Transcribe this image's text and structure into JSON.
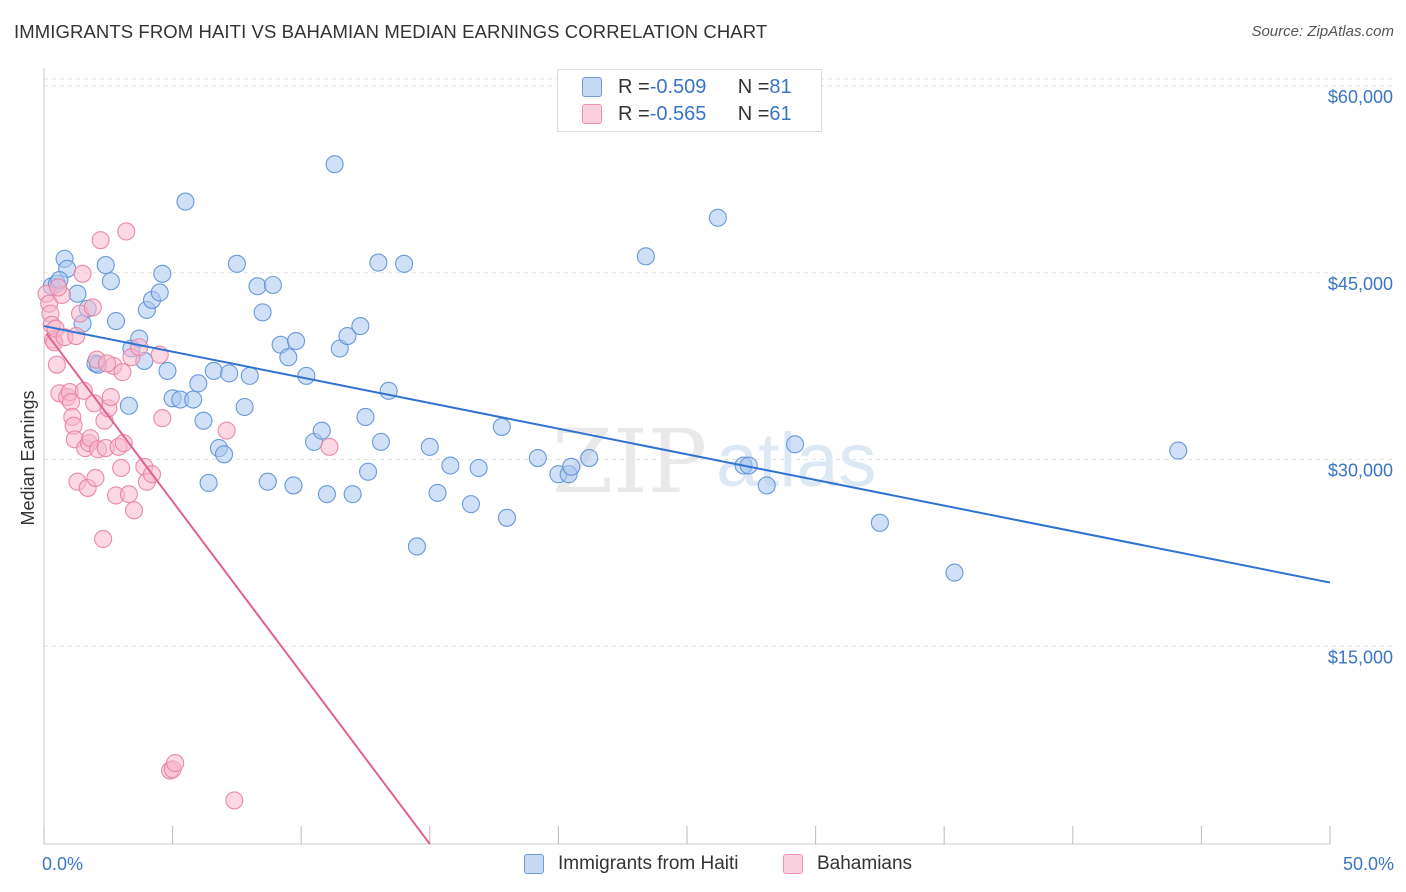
{
  "header": {
    "title": "IMMIGRANTS FROM HAITI VS BAHAMIAN MEDIAN EARNINGS CORRELATION CHART",
    "source": "Source: ZipAtlas.com"
  },
  "legend": {
    "rows": [
      {
        "r_label": "R = ",
        "r_value": "-0.509",
        "n_label": "N = ",
        "n_value": "81"
      },
      {
        "r_label": "R = ",
        "r_value": "-0.565",
        "n_label": "N = ",
        "n_value": "61"
      }
    ],
    "bottom": [
      "Immigrants from Haiti",
      "Bahamians"
    ]
  },
  "watermark": {
    "zip": "ZIP",
    "atlas": "atlas"
  },
  "colors": {
    "haiti_fill": "#aac8f0",
    "haiti_stroke": "#5b8fd6",
    "haiti_line": "#2f72d0",
    "bahamas_fill": "#f7b8cc",
    "bahamas_stroke": "#e87fa2",
    "bahamas_line": "#e0628f",
    "tick_text": "#3a75c4",
    "grid": "#e3e3e3"
  },
  "chart_data": {
    "type": "scatter",
    "title": "IMMIGRANTS FROM HAITI VS BAHAMIAN MEDIAN EARNINGS CORRELATION CHART",
    "xlabel": "",
    "ylabel": "Median Earnings",
    "xlim": [
      0,
      50
    ],
    "ylim": [
      0,
      62000
    ],
    "x_tick_labels": [
      "0.0%",
      "50.0%"
    ],
    "y_ticks": [
      15000,
      30000,
      45000,
      60000
    ],
    "y_tick_labels": [
      "$15,000",
      "$30,000",
      "$45,000",
      "$60,000"
    ],
    "grid": true,
    "legend_position": "top-center",
    "series": [
      {
        "name": "Immigrants from Haiti",
        "r": -0.509,
        "n": 81,
        "trend": {
          "x": [
            0,
            50
          ],
          "y": [
            41600,
            21000
          ]
        },
        "points": [
          [
            0.3,
            44800
          ],
          [
            0.5,
            45000
          ],
          [
            0.8,
            47000
          ],
          [
            0.9,
            46200
          ],
          [
            1.3,
            44200
          ],
          [
            1.5,
            41800
          ],
          [
            1.7,
            43000
          ],
          [
            2.0,
            38600
          ],
          [
            2.4,
            46500
          ],
          [
            2.6,
            45200
          ],
          [
            2.8,
            42000
          ],
          [
            3.3,
            35200
          ],
          [
            3.4,
            39800
          ],
          [
            3.7,
            40600
          ],
          [
            3.9,
            38800
          ],
          [
            4.0,
            42900
          ],
          [
            4.2,
            43700
          ],
          [
            4.5,
            44300
          ],
          [
            4.6,
            45800
          ],
          [
            4.8,
            38000
          ],
          [
            5.0,
            35800
          ],
          [
            5.3,
            35700
          ],
          [
            5.5,
            51600
          ],
          [
            5.8,
            35700
          ],
          [
            6.0,
            37000
          ],
          [
            6.2,
            34000
          ],
          [
            6.4,
            29000
          ],
          [
            6.6,
            38000
          ],
          [
            6.8,
            31800
          ],
          [
            7.0,
            31300
          ],
          [
            7.2,
            37800
          ],
          [
            7.5,
            46600
          ],
          [
            7.8,
            35100
          ],
          [
            8.0,
            37600
          ],
          [
            8.3,
            44800
          ],
          [
            8.5,
            42700
          ],
          [
            8.7,
            29100
          ],
          [
            8.9,
            44900
          ],
          [
            9.2,
            40100
          ],
          [
            9.5,
            39100
          ],
          [
            9.7,
            28800
          ],
          [
            9.8,
            40400
          ],
          [
            10.2,
            37600
          ],
          [
            10.5,
            32300
          ],
          [
            10.8,
            33200
          ],
          [
            11.0,
            28100
          ],
          [
            11.3,
            54600
          ],
          [
            11.5,
            39800
          ],
          [
            11.8,
            40800
          ],
          [
            12.0,
            28100
          ],
          [
            12.3,
            41600
          ],
          [
            12.5,
            34300
          ],
          [
            12.6,
            29900
          ],
          [
            13.0,
            46700
          ],
          [
            13.1,
            32300
          ],
          [
            13.4,
            36400
          ],
          [
            14.0,
            46600
          ],
          [
            14.5,
            23900
          ],
          [
            15.0,
            31900
          ],
          [
            15.3,
            28200
          ],
          [
            15.8,
            30400
          ],
          [
            16.6,
            27300
          ],
          [
            16.9,
            30200
          ],
          [
            17.8,
            33500
          ],
          [
            18.0,
            26200
          ],
          [
            19.2,
            31000
          ],
          [
            20.0,
            29700
          ],
          [
            20.4,
            29700
          ],
          [
            20.5,
            30300
          ],
          [
            21.2,
            31000
          ],
          [
            23.4,
            47200
          ],
          [
            26.2,
            50300
          ],
          [
            27.2,
            30400
          ],
          [
            27.4,
            30400
          ],
          [
            28.1,
            28800
          ],
          [
            29.2,
            32100
          ],
          [
            32.5,
            25800
          ],
          [
            35.4,
            21800
          ],
          [
            44.1,
            31600
          ],
          [
            0.6,
            45300
          ],
          [
            2.1,
            38500
          ]
        ]
      },
      {
        "name": "Bahamians",
        "r": -0.565,
        "n": 61,
        "trend": {
          "x": [
            0.1,
            15.0
          ],
          "y": [
            41000,
            0
          ]
        },
        "points": [
          [
            0.1,
            44200
          ],
          [
            0.2,
            43400
          ],
          [
            0.25,
            42600
          ],
          [
            0.3,
            41700
          ],
          [
            0.35,
            40500
          ],
          [
            0.4,
            40300
          ],
          [
            0.45,
            41400
          ],
          [
            0.5,
            38500
          ],
          [
            0.6,
            36200
          ],
          [
            0.7,
            44100
          ],
          [
            0.8,
            40700
          ],
          [
            0.9,
            35900
          ],
          [
            1.0,
            36300
          ],
          [
            1.05,
            35500
          ],
          [
            1.1,
            34300
          ],
          [
            1.15,
            33600
          ],
          [
            1.2,
            32500
          ],
          [
            1.3,
            29100
          ],
          [
            1.4,
            42600
          ],
          [
            1.5,
            45800
          ],
          [
            1.55,
            36400
          ],
          [
            1.6,
            31800
          ],
          [
            1.7,
            28600
          ],
          [
            1.75,
            32200
          ],
          [
            1.8,
            32600
          ],
          [
            1.9,
            43100
          ],
          [
            2.0,
            29400
          ],
          [
            2.05,
            38900
          ],
          [
            2.1,
            31700
          ],
          [
            2.2,
            48500
          ],
          [
            2.3,
            24500
          ],
          [
            2.35,
            34000
          ],
          [
            2.4,
            31800
          ],
          [
            2.5,
            35000
          ],
          [
            2.6,
            35900
          ],
          [
            2.7,
            38400
          ],
          [
            2.8,
            28000
          ],
          [
            2.9,
            31900
          ],
          [
            3.0,
            30200
          ],
          [
            3.1,
            32200
          ],
          [
            3.2,
            49200
          ],
          [
            3.3,
            28100
          ],
          [
            3.4,
            39100
          ],
          [
            3.5,
            26800
          ],
          [
            3.7,
            39900
          ],
          [
            3.9,
            30300
          ],
          [
            4.0,
            29100
          ],
          [
            4.2,
            29700
          ],
          [
            4.5,
            39300
          ],
          [
            4.6,
            34200
          ],
          [
            4.9,
            5900
          ],
          [
            5.0,
            6000
          ],
          [
            5.1,
            6500
          ],
          [
            7.1,
            33200
          ],
          [
            7.4,
            3500
          ],
          [
            11.1,
            31900
          ],
          [
            0.55,
            44700
          ],
          [
            1.25,
            40800
          ],
          [
            2.45,
            38600
          ],
          [
            3.05,
            37900
          ],
          [
            1.95,
            35400
          ]
        ]
      }
    ]
  }
}
